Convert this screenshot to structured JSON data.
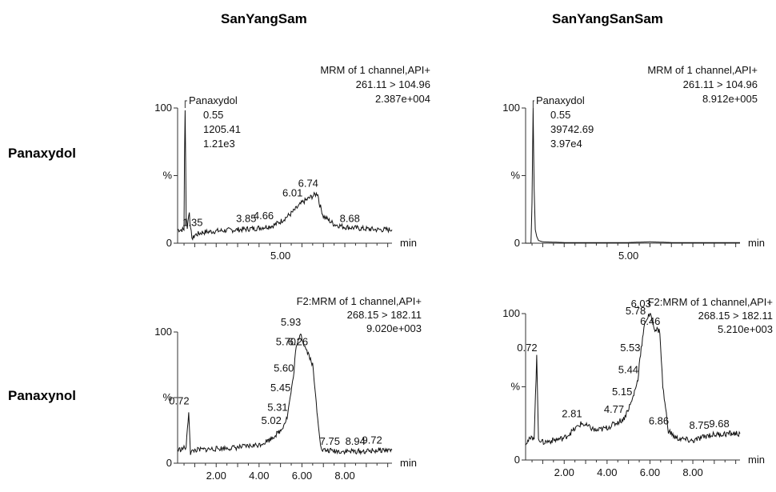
{
  "columns": [
    "SanYangSam",
    "SanYangSanSam"
  ],
  "rows": [
    "Panaxydol",
    "Panaxynol"
  ],
  "chart_data": [
    {
      "type": "line",
      "column": "SanYangSam",
      "row": "Panaxydol",
      "header": [
        "MRM of 1 channel,API+",
        "261.11 > 104.96",
        "2.387e+004"
      ],
      "peak_annotation": [
        "Panaxydol",
        "0.55",
        "1205.41",
        "1.21e3"
      ],
      "xlabel": "min",
      "xlim": [
        0.2,
        10.2
      ],
      "ylim": [
        0,
        100
      ],
      "yticks": [
        {
          "v": 0,
          "label": "0"
        },
        {
          "v": 50,
          "label": "%"
        },
        {
          "v": 100,
          "label": "100"
        }
      ],
      "xticklabels": [
        {
          "v": 5,
          "label": "5.00"
        }
      ],
      "peak_labels": [
        {
          "x": 1.35,
          "label": "1.35"
        },
        {
          "x": 3.85,
          "label": "3.85"
        },
        {
          "x": 4.66,
          "label": "4.66"
        },
        {
          "x": 6.01,
          "label": "6.01"
        },
        {
          "x": 6.74,
          "label": "6.74"
        },
        {
          "x": 8.68,
          "label": "8.68"
        }
      ],
      "trace": [
        [
          0.2,
          10
        ],
        [
          0.5,
          10
        ],
        [
          0.52,
          60
        ],
        [
          0.55,
          100
        ],
        [
          0.6,
          20
        ],
        [
          0.65,
          12
        ],
        [
          0.75,
          24
        ],
        [
          0.8,
          10
        ],
        [
          0.9,
          3
        ],
        [
          1.0,
          6
        ],
        [
          1.35,
          8
        ],
        [
          2.0,
          9
        ],
        [
          3.0,
          10
        ],
        [
          3.85,
          11
        ],
        [
          4.66,
          13
        ],
        [
          5.0,
          16
        ],
        [
          5.5,
          22
        ],
        [
          6.01,
          30
        ],
        [
          6.4,
          34
        ],
        [
          6.74,
          37
        ],
        [
          6.8,
          30
        ],
        [
          7.0,
          20
        ],
        [
          7.5,
          14
        ],
        [
          8.0,
          12
        ],
        [
          8.68,
          11
        ],
        [
          9.5,
          10
        ],
        [
          10.2,
          10
        ]
      ]
    },
    {
      "type": "line",
      "column": "SanYangSanSam",
      "row": "Panaxydol",
      "header": [
        "MRM of 1 channel,API+",
        "261.11 > 104.96",
        "8.912e+005"
      ],
      "peak_annotation": [
        "Panaxydol",
        "0.55",
        "39742.69",
        "3.97e4"
      ],
      "xlabel": "min",
      "xlim": [
        0.2,
        10.2
      ],
      "ylim": [
        0,
        100
      ],
      "yticks": [
        {
          "v": 0,
          "label": "0"
        },
        {
          "v": 50,
          "label": "%"
        },
        {
          "v": 100,
          "label": "100"
        }
      ],
      "xticklabels": [
        {
          "v": 5,
          "label": "5.00"
        }
      ],
      "peak_labels": [],
      "trace": [
        [
          0.2,
          0
        ],
        [
          0.45,
          0
        ],
        [
          0.5,
          30
        ],
        [
          0.55,
          100
        ],
        [
          0.6,
          40
        ],
        [
          0.65,
          10
        ],
        [
          0.72,
          5
        ],
        [
          0.8,
          2
        ],
        [
          1.0,
          1
        ],
        [
          2.0,
          0.5
        ],
        [
          5.0,
          0.5
        ],
        [
          6.0,
          1
        ],
        [
          7.0,
          0.5
        ],
        [
          10.2,
          0.5
        ]
      ]
    },
    {
      "type": "line",
      "column": "SanYangSam",
      "row": "Panaxynol",
      "header": [
        "F2:MRM of 1 channel,API+",
        "268.15 > 182.11",
        "9.020e+003"
      ],
      "peak_annotation": [],
      "xlabel": "min",
      "xlim": [
        0.2,
        10.2
      ],
      "ylim": [
        0,
        100
      ],
      "yticks": [
        {
          "v": 0,
          "label": "0"
        },
        {
          "v": 50,
          "label": "%"
        },
        {
          "v": 100,
          "label": "100"
        }
      ],
      "xticklabels": [
        {
          "v": 2,
          "label": "2.00"
        },
        {
          "v": 4,
          "label": "4.00"
        },
        {
          "v": 6,
          "label": "6.00"
        },
        {
          "v": 8,
          "label": "8.00"
        }
      ],
      "peak_labels": [
        {
          "x": 0.72,
          "label": "0.72"
        },
        {
          "x": 5.02,
          "label": "5.02"
        },
        {
          "x": 5.31,
          "label": "5.31"
        },
        {
          "x": 5.45,
          "label": "5.45"
        },
        {
          "x": 5.6,
          "label": "5.60"
        },
        {
          "x": 5.7,
          "label": "5.70"
        },
        {
          "x": 5.93,
          "label": "5.93"
        },
        {
          "x": 6.26,
          "label": "6.26"
        },
        {
          "x": 7.75,
          "label": "7.75"
        },
        {
          "x": 8.94,
          "label": "8.94"
        },
        {
          "x": 9.72,
          "label": "9.72"
        }
      ],
      "trace": [
        [
          0.2,
          10
        ],
        [
          0.6,
          12
        ],
        [
          0.72,
          40
        ],
        [
          0.8,
          8
        ],
        [
          1.0,
          10
        ],
        [
          2.0,
          11
        ],
        [
          3.0,
          12
        ],
        [
          4.0,
          14
        ],
        [
          4.5,
          18
        ],
        [
          5.02,
          25
        ],
        [
          5.31,
          35
        ],
        [
          5.45,
          50
        ],
        [
          5.6,
          65
        ],
        [
          5.7,
          85
        ],
        [
          5.93,
          100
        ],
        [
          6.1,
          90
        ],
        [
          6.26,
          85
        ],
        [
          6.5,
          75
        ],
        [
          6.7,
          40
        ],
        [
          6.9,
          10
        ],
        [
          7.75,
          9
        ],
        [
          8.94,
          9
        ],
        [
          9.72,
          10
        ],
        [
          10.2,
          10
        ]
      ]
    },
    {
      "type": "line",
      "column": "SanYangSanSam",
      "row": "Panaxynol",
      "header": [
        "F2:MRM of 1 channel,API+",
        "268.15 > 182.11",
        "5.210e+003"
      ],
      "peak_annotation": [],
      "xlabel": "min",
      "xlim": [
        0.2,
        10.2
      ],
      "ylim": [
        0,
        100
      ],
      "yticks": [
        {
          "v": 0,
          "label": "0"
        },
        {
          "v": 50,
          "label": "%"
        },
        {
          "v": 100,
          "label": "100"
        }
      ],
      "xticklabels": [
        {
          "v": 2,
          "label": "2.00"
        },
        {
          "v": 4,
          "label": "4.00"
        },
        {
          "v": 6,
          "label": "6.00"
        },
        {
          "v": 8,
          "label": "8.00"
        }
      ],
      "peak_labels": [
        {
          "x": 0.72,
          "label": "0.72"
        },
        {
          "x": 2.81,
          "label": "2.81"
        },
        {
          "x": 4.77,
          "label": "4.77"
        },
        {
          "x": 5.15,
          "label": "5.15"
        },
        {
          "x": 5.44,
          "label": "5.44"
        },
        {
          "x": 5.53,
          "label": "5.53"
        },
        {
          "x": 5.78,
          "label": "5.78"
        },
        {
          "x": 6.03,
          "label": "6.03"
        },
        {
          "x": 6.46,
          "label": "6.46"
        },
        {
          "x": 6.86,
          "label": "6.86"
        },
        {
          "x": 8.75,
          "label": "8.75"
        },
        {
          "x": 9.68,
          "label": "9.68"
        }
      ],
      "trace": [
        [
          0.2,
          12
        ],
        [
          0.6,
          16
        ],
        [
          0.72,
          70
        ],
        [
          0.8,
          15
        ],
        [
          1.0,
          12
        ],
        [
          2.0,
          15
        ],
        [
          2.81,
          25
        ],
        [
          3.5,
          20
        ],
        [
          4.0,
          22
        ],
        [
          4.77,
          28
        ],
        [
          5.15,
          40
        ],
        [
          5.44,
          55
        ],
        [
          5.53,
          70
        ],
        [
          5.78,
          95
        ],
        [
          6.03,
          100
        ],
        [
          6.2,
          90
        ],
        [
          6.46,
          88
        ],
        [
          6.6,
          50
        ],
        [
          6.86,
          20
        ],
        [
          7.2,
          15
        ],
        [
          8.0,
          13
        ],
        [
          8.75,
          17
        ],
        [
          9.68,
          18
        ],
        [
          10.2,
          18
        ]
      ]
    }
  ]
}
